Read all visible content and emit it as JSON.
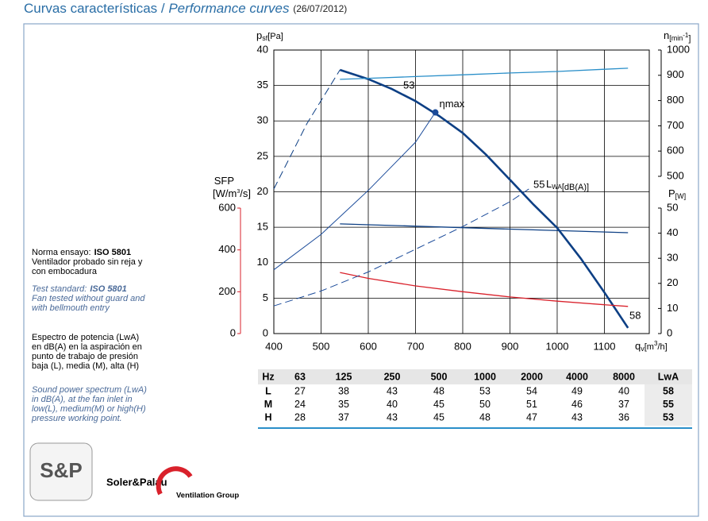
{
  "header": {
    "title": "Curvas características /",
    "title_en": "Performance curves",
    "date": "(26/07/2012)"
  },
  "notes": {
    "standard_es_label": "Norma ensayo:",
    "standard_es_value": "ISO 5801",
    "standard_es_text": [
      "Ventilador probado sin reja y",
      "con embocadura"
    ],
    "standard_en_label": "Test standard:",
    "standard_en_value": "ISO 5801",
    "standard_en_text": [
      "Fan tested without guard and",
      "with bellmouth entry"
    ],
    "spectrum_es": [
      "Espectro de potencia (LwA)",
      "en dB(A) en la aspiración en",
      "punto de trabajo de presión",
      "baja (L), media (M), alta (H)"
    ],
    "spectrum_en": [
      "Sound power spectrum (LwA)",
      "in dB(A), at the fan inlet in",
      "low(L), medium(M) or high(H)",
      "pressure working point."
    ]
  },
  "chart_data": {
    "type": "line",
    "x_label": {
      "main": "q",
      "sub": "v",
      "pre": "[m",
      "sup": "3",
      "post": "/h]"
    },
    "y_label": {
      "main": "p",
      "sub": "sf",
      "post": "[Pa]"
    },
    "y2_label": {
      "main": "n",
      "sub": "[min",
      "sup": "-1",
      "post": "]"
    },
    "y3_label": {
      "main": "P",
      "sub": "[W]"
    },
    "y4_label": {
      "main": "SFP",
      "pre": "[W/m",
      "sup": "3",
      "post": "/s]"
    },
    "xlim": [
      400,
      1195
    ],
    "xticks": [
      400,
      500,
      600,
      700,
      800,
      900,
      1000,
      1100
    ],
    "ylim": [
      0,
      40
    ],
    "yticks": [
      0,
      5,
      10,
      15,
      20,
      25,
      30,
      35,
      40
    ],
    "y2lim": [
      500,
      1000
    ],
    "y2ticks": [
      500,
      600,
      700,
      800,
      900,
      1000
    ],
    "y3lim": [
      0,
      50
    ],
    "y3ticks": [
      0,
      10,
      20,
      30,
      40,
      50
    ],
    "y4lim": [
      0,
      600
    ],
    "y4ticks": [
      0,
      200,
      400,
      600
    ],
    "y4color": "#d9212b",
    "grid": true,
    "series": [
      {
        "color": "#0d3f84",
        "axis": "y",
        "dash": false,
        "line_width": 2.6,
        "x": [
          540,
          600,
          650,
          700,
          750,
          800,
          850,
          900,
          950,
          1000,
          1050,
          1100,
          1150
        ],
        "values": [
          37.2,
          35.9,
          34.5,
          32.8,
          30.7,
          28.3,
          25.2,
          21.7,
          18.2,
          14.9,
          10.6,
          5.8,
          0.8
        ]
      },
      {
        "color": "#0d3f84",
        "axis": "y",
        "dash": true,
        "line_width": 1,
        "x": [
          400,
          470,
          540
        ],
        "values": [
          20.4,
          29.6,
          37.2
        ]
      },
      {
        "color": "#2a8fc9",
        "axis": "y2",
        "dash": false,
        "line_width": 1.3,
        "x": [
          540,
          600,
          700,
          800,
          900,
          1000,
          1100,
          1150
        ],
        "values": [
          884,
          888,
          895,
          902,
          909,
          915,
          924,
          928
        ]
      },
      {
        "color": "#0d3f84",
        "axis": "y3",
        "dash": false,
        "line_width": 1.3,
        "x": [
          540,
          700,
          900,
          1150
        ],
        "values": [
          43.7,
          42.8,
          41.6,
          40.2
        ]
      },
      {
        "color": "#d9212b",
        "axis": "y4",
        "dash": false,
        "line_width": 1.3,
        "x": [
          540,
          600,
          700,
          800,
          900,
          1000,
          1100,
          1150
        ],
        "values": [
          292,
          264,
          228,
          200,
          175,
          155,
          138,
          130
        ]
      },
      {
        "color": "#1b4b9a",
        "axis": "y",
        "dash": false,
        "line_width": 1,
        "x": [
          400,
          500,
          600,
          700,
          742
        ],
        "values": [
          9.0,
          14.0,
          20.2,
          27.0,
          31.2
        ]
      },
      {
        "color": "#1b4b9a",
        "axis": "y",
        "dash": true,
        "line_width": 1,
        "x": [
          400,
          500,
          600,
          700,
          800,
          900,
          940
        ],
        "values": [
          3.9,
          6.0,
          8.7,
          11.9,
          15.1,
          18.6,
          20.4
        ]
      }
    ],
    "eta_max": {
      "label": "ηmax",
      "x": 742,
      "y": 31.2,
      "color": "#1b4b9a"
    },
    "annotations": [
      53,
      55,
      58
    ],
    "lwa_label": {
      "main": "L",
      "sub": "WA",
      "post": "[dB(A)]"
    }
  },
  "table": {
    "header": [
      "Hz",
      63,
      125,
      250,
      500,
      1000,
      2000,
      4000,
      8000,
      "LwA"
    ],
    "rows": [
      [
        "L",
        27,
        38,
        43,
        48,
        53,
        54,
        49,
        40,
        58
      ],
      [
        "M",
        24,
        35,
        40,
        45,
        50,
        51,
        46,
        37,
        55
      ],
      [
        "H",
        28,
        37,
        43,
        45,
        48,
        47,
        43,
        36,
        53
      ]
    ]
  },
  "logo": {
    "mark": "S&P",
    "brand": "Soler&Palau",
    "group": "Ventilation Group"
  }
}
